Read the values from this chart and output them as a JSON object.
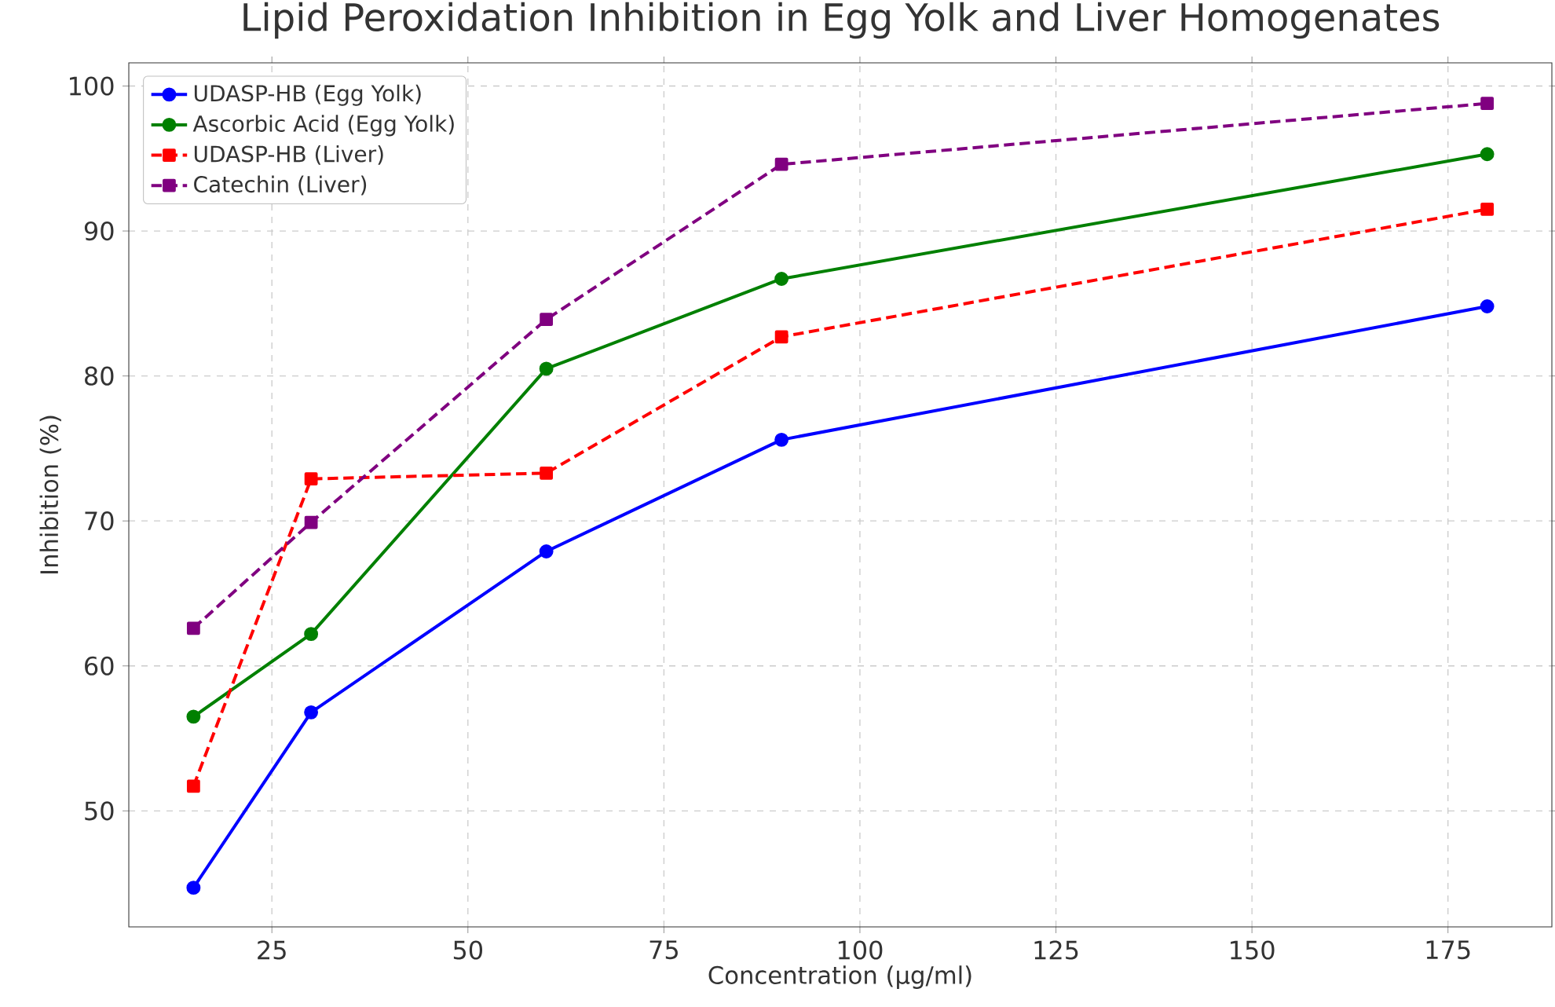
{
  "chart_data": {
    "type": "line",
    "title": "Lipid Peroxidation Inhibition in Egg Yolk and Liver Homogenates",
    "xlabel": "Concentration (µg/ml)",
    "ylabel": "Inhibition (%)",
    "x": [
      15,
      30,
      60,
      90,
      180
    ],
    "series": [
      {
        "name": "UDASP-HB (Egg Yolk)",
        "color": "#0000ff",
        "marker": "circle",
        "line_style": "solid",
        "values": [
          44.7,
          56.8,
          67.9,
          75.6,
          84.8
        ]
      },
      {
        "name": "Ascorbic Acid (Egg Yolk)",
        "color": "#008000",
        "marker": "circle",
        "line_style": "solid",
        "values": [
          56.5,
          62.2,
          80.5,
          86.7,
          95.3
        ]
      },
      {
        "name": "UDASP-HB (Liver)",
        "color": "#ff0000",
        "marker": "square",
        "line_style": "dashed",
        "values": [
          51.7,
          72.9,
          73.3,
          82.7,
          91.5
        ]
      },
      {
        "name": "Catechin (Liver)",
        "color": "#800080",
        "marker": "square",
        "line_style": "dashed",
        "values": [
          62.6,
          69.9,
          83.9,
          94.6,
          98.8
        ]
      }
    ],
    "xlim": [
      6.75,
      188.25
    ],
    "ylim": [
      42.0,
      101.6
    ],
    "xticks": [
      25,
      50,
      75,
      100,
      125,
      150,
      175
    ],
    "yticks": [
      50,
      60,
      70,
      80,
      90,
      100
    ],
    "grid": true,
    "legend": "top left"
  }
}
